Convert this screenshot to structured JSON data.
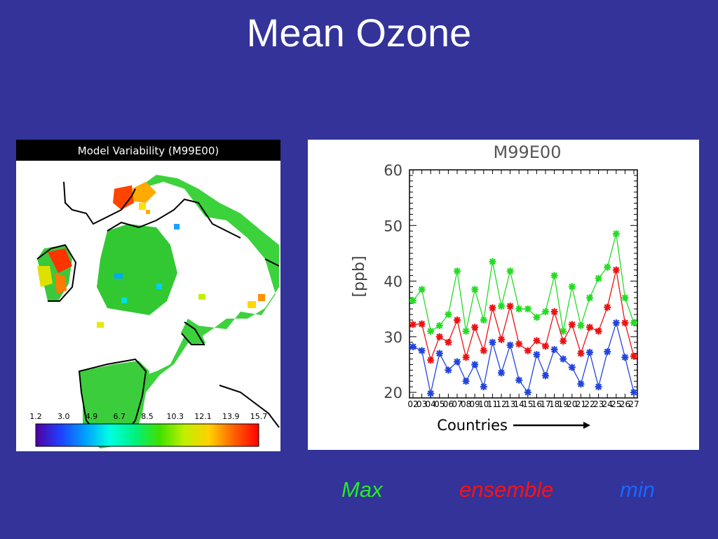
{
  "slide": {
    "title": "Mean Ozone"
  },
  "map": {
    "title": "Model Variability (M99E00)",
    "colorbar_ticks": [
      "1.2",
      "3.0",
      "4.9",
      "6.7",
      "8.5",
      "10.3",
      "12.1",
      "13.9",
      "15.7"
    ],
    "colorbar_colors": [
      "#5000a0",
      "#2040ff",
      "#00a0ff",
      "#00ffe0",
      "#00f080",
      "#40e000",
      "#c0f000",
      "#ffd000",
      "#ff6000",
      "#ff0000"
    ]
  },
  "chart_data": {
    "type": "line",
    "title": "M99E00",
    "xlabel": "Countries",
    "ylabel": "[ppb]",
    "ylim": [
      19,
      60
    ],
    "yticks": [
      20,
      30,
      40,
      50,
      60
    ],
    "x": [
      "02",
      "03",
      "04",
      "05",
      "06",
      "07",
      "08",
      "09",
      "10",
      "11",
      "12",
      "13",
      "14",
      "15",
      "16",
      "17",
      "18",
      "19",
      "20",
      "21",
      "22",
      "23",
      "24",
      "25",
      "26",
      "27"
    ],
    "series": [
      {
        "name": "Max",
        "color": "#22dd22",
        "values": [
          36.5,
          38.5,
          31,
          32,
          34,
          41.8,
          31,
          38.5,
          33,
          43.5,
          35.5,
          41.8,
          35,
          35,
          33.5,
          34.5,
          41,
          31,
          39,
          32,
          37,
          40.5,
          42.5,
          48.5,
          37,
          32.5
        ]
      },
      {
        "name": "ensemble",
        "color": "#ee1111",
        "values": [
          32.2,
          32.3,
          25.8,
          30,
          29,
          33,
          26.3,
          31.7,
          27.5,
          35.2,
          29.5,
          35.5,
          28.7,
          27.5,
          29.3,
          28.3,
          34.5,
          29.2,
          32.2,
          27,
          31.7,
          31,
          35.3,
          42,
          32.5,
          26.5
        ]
      },
      {
        "name": "min",
        "color": "#2244dd",
        "values": [
          28.2,
          27.5,
          19.8,
          27,
          24,
          25.5,
          22,
          25,
          21,
          29,
          23.5,
          28.5,
          22.2,
          20,
          26.8,
          23,
          27.7,
          26,
          24.5,
          21.5,
          27.2,
          21,
          27.3,
          32.5,
          26.3,
          20
        ]
      }
    ]
  },
  "legend": {
    "max_label": "Max",
    "ensemble_label": "ensemble",
    "min_label": "min"
  }
}
